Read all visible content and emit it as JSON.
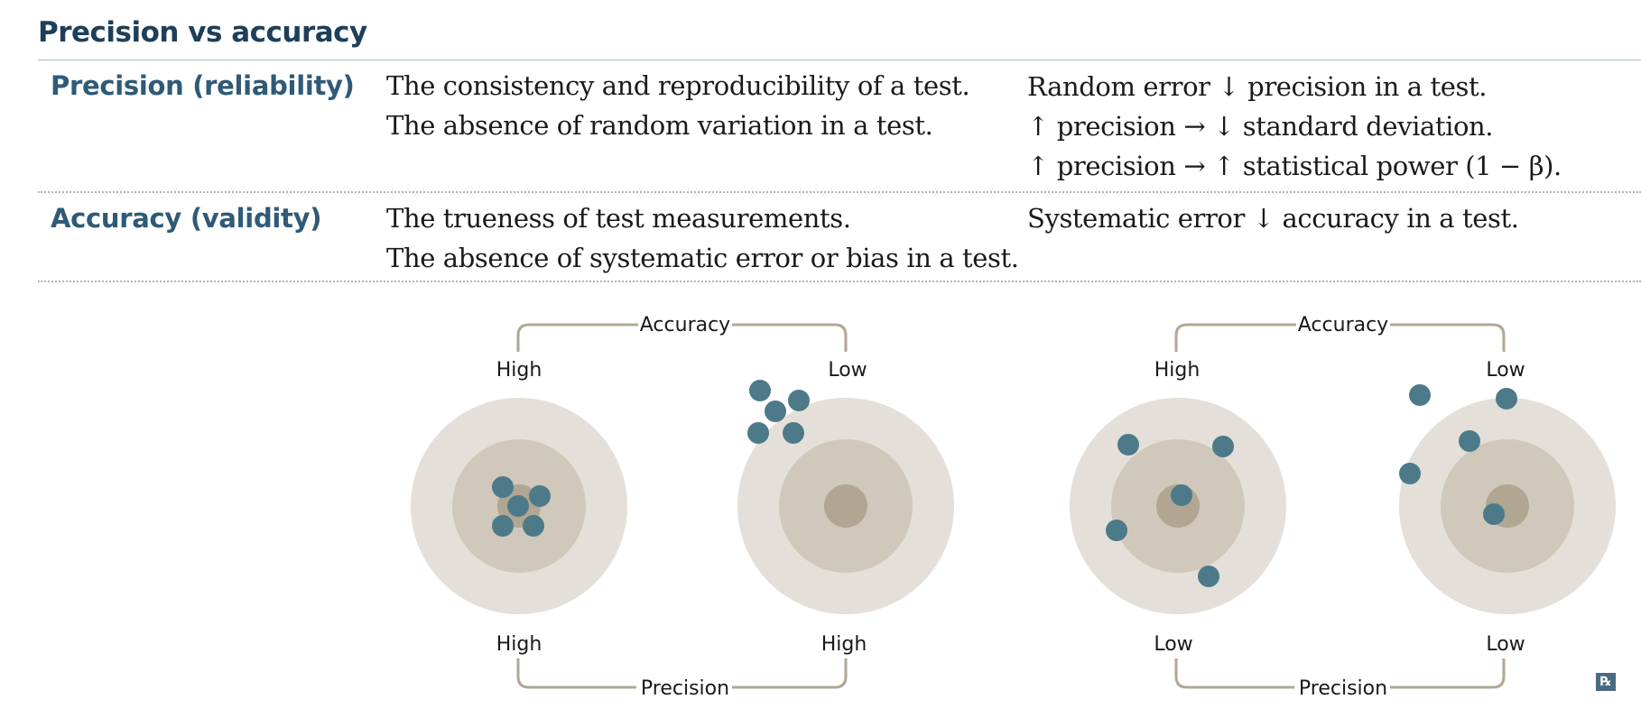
{
  "title": "Precision vs accuracy",
  "rows": [
    {
      "term": "Precision (reliability)",
      "definition": [
        "The consistency and reproducibility of a test.",
        "The absence of random variation in a test."
      ],
      "notes": [
        "Random error ↓ precision in a test.",
        "↑ precision → ↓ standard deviation.",
        "↑ precision → ↑ statistical power (1 − β)."
      ]
    },
    {
      "term": "Accuracy (validity)",
      "definition": [
        "The trueness of test measurements.",
        "The absence of systematic error or bias in a test."
      ],
      "notes": [
        "Systematic error ↓ accuracy in a test."
      ]
    }
  ],
  "diagram": {
    "panels": [
      {
        "accuracy_label": "Accuracy",
        "precision_label": "Precision",
        "targets": [
          {
            "accuracy": "High",
            "precision": "High"
          },
          {
            "accuracy": "Low",
            "precision": "High"
          }
        ]
      },
      {
        "accuracy_label": "Accuracy",
        "precision_label": "Precision",
        "targets": [
          {
            "accuracy": "High",
            "precision": "Low"
          },
          {
            "accuracy": "Low",
            "precision": "Low"
          }
        ]
      }
    ],
    "colors": {
      "ring_outer": "#e4e0d9",
      "ring_middle": "#cfc8bb",
      "ring_center": "#b0a692",
      "dot": "#4d7a89",
      "bracket": "#b1a795"
    }
  },
  "corner_icon": "prescription-rx-icon"
}
